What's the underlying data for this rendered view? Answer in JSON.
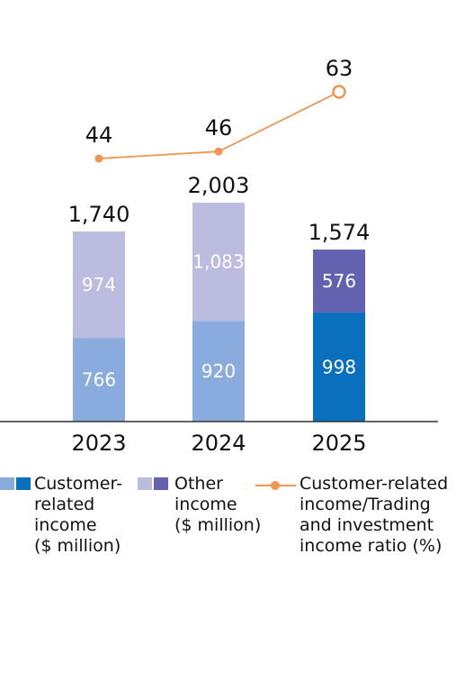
{
  "chart_data": {
    "type": "bar",
    "stacked": true,
    "categories": [
      "2023",
      "2024",
      "2025"
    ],
    "series": [
      {
        "name": "Customer-related income ($ million)",
        "values": [
          766,
          920,
          998
        ],
        "colors": [
          "#8aabde",
          "#8aabde",
          "#0a6fbd"
        ]
      },
      {
        "name": "Other income ($ million)",
        "values": [
          974,
          1083,
          576
        ],
        "colors": [
          "#bcbbe0",
          "#bcbbe0",
          "#6362b0"
        ]
      }
    ],
    "totals": [
      "1,740",
      "2,003",
      "1,574"
    ],
    "line_series": {
      "name": "Customer-related income/Trading and investment income ratio (%)",
      "values": [
        44,
        46,
        63
      ],
      "color": "#ef9651",
      "highlight_last": true
    },
    "axis_color": "#333333",
    "grid": false,
    "legend_position": "bottom"
  },
  "legend": {
    "customer": {
      "text": "Customer-\nrelated\nincome\n($ million)",
      "colors": [
        "#8aabde",
        "#0a6fbd"
      ]
    },
    "other": {
      "text": "Other\nincome\n($ million)",
      "colors": [
        "#bcbbe0",
        "#6362b0"
      ]
    },
    "ratio": {
      "text": "Customer-related\nincome/Trading\nand investment\nincome ratio (%)",
      "color": "#ef9651"
    }
  }
}
